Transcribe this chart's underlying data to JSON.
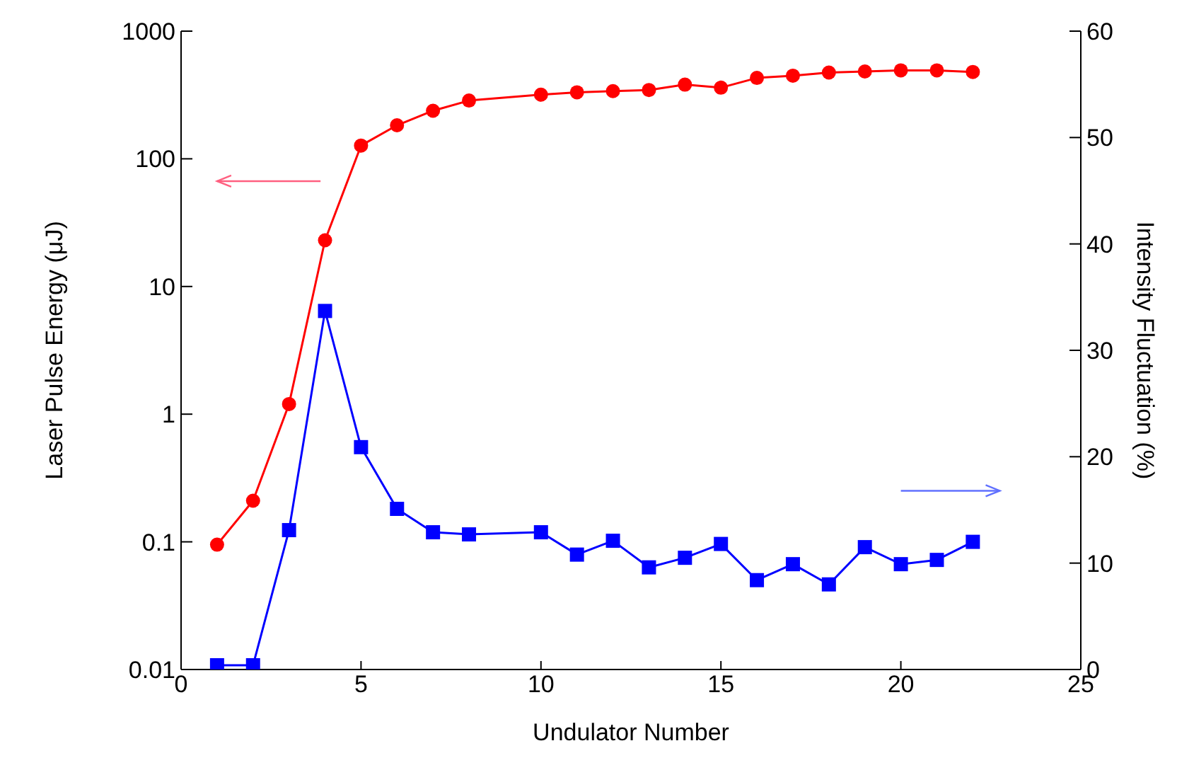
{
  "chart_data": {
    "type": "line",
    "xlabel": "Undulator Number",
    "ylabel": "Laser Pulse Energy (μJ)",
    "y2label": "Intensity Fluctuation (%)",
    "x": [
      1,
      2,
      3,
      4,
      5,
      6,
      7,
      8,
      10,
      11,
      12,
      13,
      14,
      15,
      16,
      17,
      18,
      19,
      20,
      21,
      22
    ],
    "series": [
      {
        "color": "#ff0000",
        "marker": "circle",
        "values": [
          0.095,
          0.21,
          1.2,
          23,
          127,
          183,
          238,
          286,
          318,
          332,
          339,
          346,
          381,
          361,
          430,
          448,
          474,
          483,
          493,
          493,
          479
        ]
      },
      {
        "color": "#0000ff",
        "marker": "square",
        "axis": "y2",
        "values": [
          0.4,
          0.4,
          13.1,
          33.7,
          20.9,
          15.1,
          12.9,
          12.7,
          12.9,
          10.8,
          12.1,
          9.6,
          10.5,
          11.8,
          8.4,
          9.9,
          8.0,
          11.5,
          9.9,
          10.3,
          12.0
        ]
      }
    ],
    "log": "y",
    "xlim": [
      0,
      25
    ],
    "xticks": [
      0,
      5,
      10,
      15,
      20,
      25
    ],
    "ylim": [
      0.01,
      1000
    ],
    "yticks": [
      0.01,
      0.1,
      1,
      10,
      100,
      1000
    ],
    "y2lim": [
      0,
      60
    ],
    "y2ticks": [
      0,
      10,
      20,
      30,
      40,
      50,
      60
    ],
    "line_style": "solid"
  }
}
